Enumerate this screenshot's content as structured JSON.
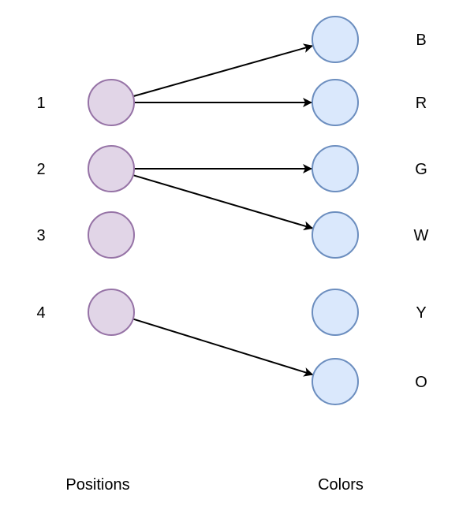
{
  "positions": {
    "caption": "Positions",
    "items": [
      "1",
      "2",
      "3",
      "4"
    ]
  },
  "colors": {
    "caption": "Colors",
    "items": [
      "B",
      "R",
      "G",
      "W",
      "Y",
      "O"
    ]
  },
  "edges": [
    {
      "from": "1",
      "to": "B"
    },
    {
      "from": "1",
      "to": "R"
    },
    {
      "from": "2",
      "to": "G"
    },
    {
      "from": "2",
      "to": "W"
    },
    {
      "from": "4",
      "to": "O"
    }
  ],
  "style": {
    "position_fill": "#e1d5e7",
    "position_stroke": "#9673a6",
    "color_fill": "#dae8fc",
    "color_stroke": "#6c8ebf",
    "edge_color": "#000000"
  }
}
